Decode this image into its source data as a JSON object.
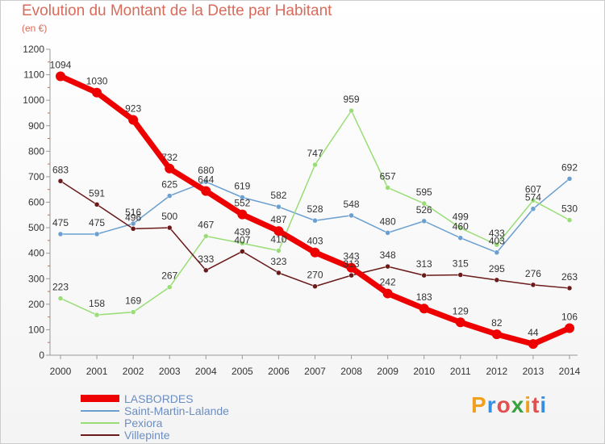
{
  "title": "Evolution du Montant de la Dette par Habitant",
  "subtitle": "(en €)",
  "brand": {
    "text": "Proxiti",
    "colors": [
      "#f0a020",
      "#3a8ee0",
      "#e05050",
      "#3aa040",
      "#f0a020",
      "#e05050",
      "#3a8ee0"
    ]
  },
  "chart_data": {
    "type": "line",
    "x": [
      "2000",
      "2001",
      "2002",
      "2003",
      "2004",
      "2005",
      "2006",
      "2007",
      "2008",
      "2009",
      "2010",
      "2011",
      "2012",
      "2013",
      "2014"
    ],
    "ylim": [
      0,
      1200
    ],
    "yticks": [
      "0",
      "100",
      "200",
      "300",
      "400",
      "500",
      "600",
      "700",
      "800",
      "900",
      "1000",
      "1100",
      "1200"
    ],
    "grid": false,
    "legend_position": "bottom-left",
    "series": [
      {
        "name": "LASBORDES",
        "color": "#ee0000",
        "width": 7,
        "values": [
          1094,
          1030,
          923,
          732,
          644,
          552,
          487,
          403,
          343,
          242,
          183,
          129,
          82,
          44,
          106
        ]
      },
      {
        "name": "Saint-Martin-Lalande",
        "color": "#6a9fd0",
        "width": 1.5,
        "values": [
          475,
          475,
          516,
          625,
          680,
          619,
          582,
          528,
          548,
          480,
          526,
          460,
          403,
          574,
          692
        ]
      },
      {
        "name": "Pexiora",
        "color": "#99dd77",
        "width": 1.5,
        "values": [
          223,
          158,
          169,
          267,
          467,
          439,
          410,
          747,
          959,
          657,
          595,
          499,
          433,
          607,
          530
        ]
      },
      {
        "name": "Villepinte",
        "color": "#6b1a1a",
        "width": 1.5,
        "values": [
          683,
          591,
          496,
          500,
          333,
          407,
          323,
          270,
          313,
          348,
          313,
          315,
          295,
          276,
          263
        ]
      }
    ]
  }
}
